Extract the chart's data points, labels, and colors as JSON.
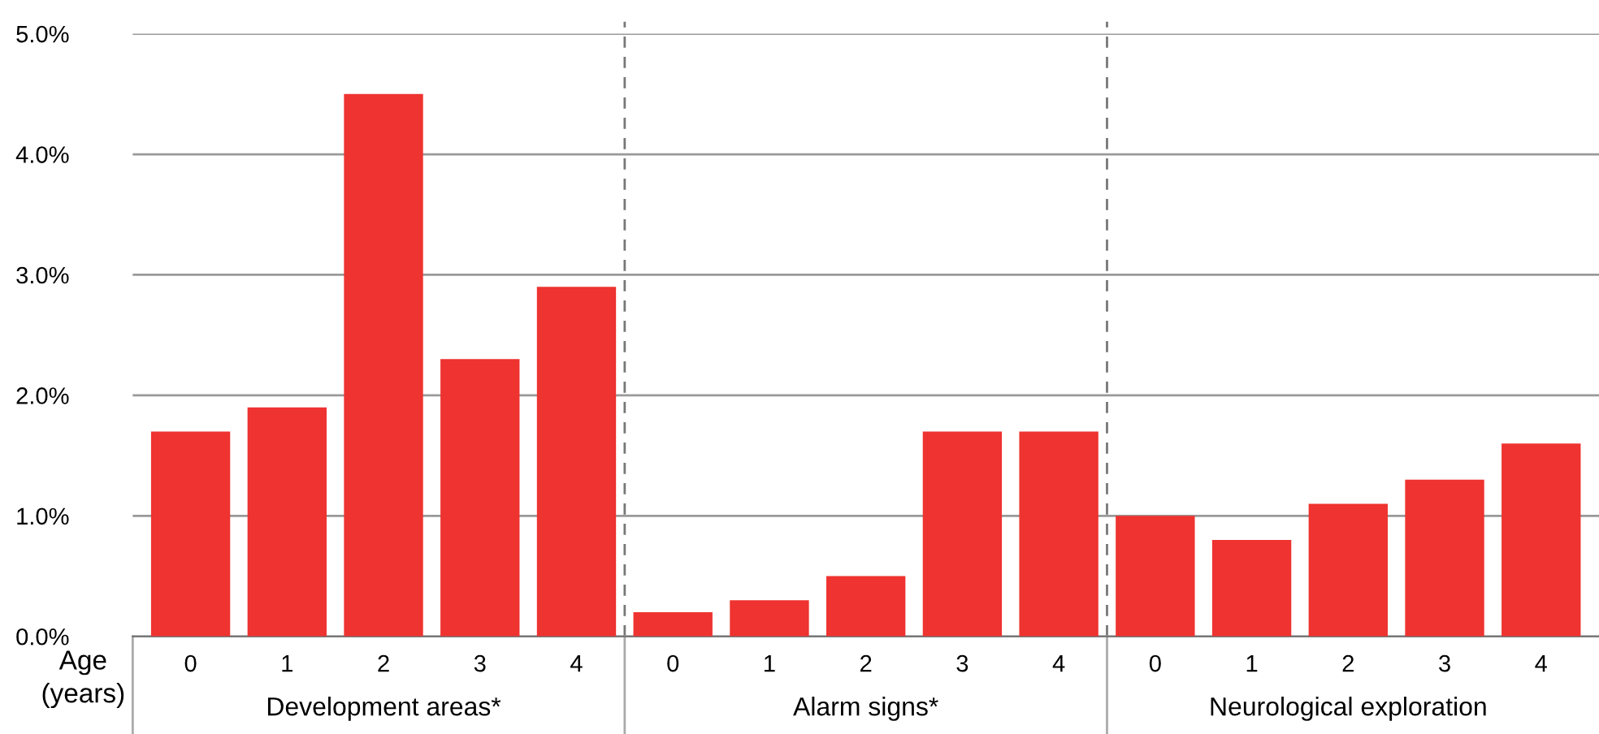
{
  "chart_data": {
    "type": "bar",
    "categories": [
      "0",
      "1",
      "2",
      "3",
      "4",
      "0",
      "1",
      "2",
      "3",
      "4",
      "0",
      "1",
      "2",
      "3",
      "4"
    ],
    "values": [
      1.7,
      1.9,
      4.5,
      2.3,
      2.9,
      0.2,
      0.3,
      0.5,
      1.7,
      1.7,
      1.0,
      0.8,
      1.1,
      1.3,
      1.6
    ],
    "color": "#ee3330",
    "xlabel": "Age\n(years)",
    "annotations": [
      "Development areas*",
      "Alarm signs*",
      "Neurological exploration"
    ],
    "ylim": [
      0,
      5
    ],
    "yticks": [
      {
        "value": 0,
        "label": "0.0%"
      },
      {
        "value": 1,
        "label": "1.0%"
      },
      {
        "value": 2,
        "label": "2.0%"
      },
      {
        "value": 3,
        "label": "3.0%"
      },
      {
        "value": 4,
        "label": "4.0%"
      },
      {
        "value": 5,
        "label": "5.0%"
      }
    ],
    "grid": "y"
  }
}
